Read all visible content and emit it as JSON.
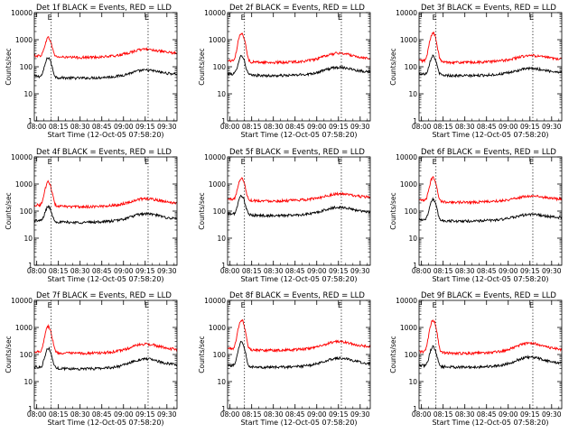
{
  "figure": {
    "xlabel": "Start Time (12-Oct-05 07:58:20)",
    "ylabel": "Counts/sec",
    "x_ticks": [
      "08:00",
      "08:15",
      "08:30",
      "08:45",
      "09:00",
      "09:15",
      "09:30"
    ],
    "y_ticks": [
      "1",
      "10",
      "100",
      "1000",
      "10000"
    ],
    "marker_label": "E"
  },
  "colors": {
    "events": "#000000",
    "lld": "#ff0000",
    "marker": "#000000"
  },
  "chart_data": [
    {
      "type": "line",
      "title": "Det 1f BLACK = Events, RED = LLD",
      "y_scale": "log",
      "ylim": [
        1,
        10000
      ],
      "xlim": [
        "07:58:20",
        "09:37:00"
      ],
      "series": [
        {
          "legend_word": "BLACK = Events",
          "color": "black",
          "baseline": 45,
          "peak_time": "08:08",
          "peak": 220,
          "late_bump_time": "09:15",
          "late_bump": 70,
          "end": 50
        },
        {
          "legend_word": "RED = LLD",
          "color": "red",
          "baseline": 260,
          "peak_time": "08:08",
          "peak": 1200,
          "late_bump_time": "09:15",
          "late_bump": 420,
          "end": 300
        }
      ],
      "marker_times": [
        "08:10",
        "09:17"
      ]
    },
    {
      "type": "line",
      "title": "Det 2f BLACK = Events, RED = LLD",
      "y_scale": "log",
      "ylim": [
        1,
        10000
      ],
      "xlim": [
        "07:58:20",
        "09:37:00"
      ],
      "series": [
        {
          "legend_word": "BLACK = Events",
          "color": "black",
          "baseline": 55,
          "peak_time": "08:08",
          "peak": 260,
          "late_bump_time": "09:15",
          "late_bump": 90,
          "end": 60
        },
        {
          "legend_word": "RED = LLD",
          "color": "red",
          "baseline": 170,
          "peak_time": "08:08",
          "peak": 1800,
          "late_bump_time": "09:15",
          "late_bump": 300,
          "end": 200
        }
      ],
      "marker_times": [
        "08:10",
        "09:17"
      ]
    },
    {
      "type": "line",
      "title": "Det 3f BLACK = Events, RED = LLD",
      "y_scale": "log",
      "ylim": [
        1,
        10000
      ],
      "xlim": [
        "07:58:20",
        "09:37:00"
      ],
      "series": [
        {
          "legend_word": "BLACK = Events",
          "color": "black",
          "baseline": 55,
          "peak_time": "08:08",
          "peak": 260,
          "late_bump_time": "09:15",
          "late_bump": 80,
          "end": 55
        },
        {
          "legend_word": "RED = LLD",
          "color": "red",
          "baseline": 170,
          "peak_time": "08:08",
          "peak": 1800,
          "late_bump_time": "09:15",
          "late_bump": 240,
          "end": 170
        }
      ],
      "marker_times": [
        "08:10",
        "09:17"
      ]
    },
    {
      "type": "line",
      "title": "Det 4f BLACK = Events, RED = LLD",
      "y_scale": "log",
      "ylim": [
        1,
        10000
      ],
      "xlim": [
        "07:58:20",
        "09:37:00"
      ],
      "series": [
        {
          "legend_word": "BLACK = Events",
          "color": "black",
          "baseline": 45,
          "peak_time": "08:08",
          "peak": 150,
          "late_bump_time": "09:15",
          "late_bump": 75,
          "end": 45
        },
        {
          "legend_word": "RED = LLD",
          "color": "red",
          "baseline": 170,
          "peak_time": "08:08",
          "peak": 1200,
          "late_bump_time": "09:15",
          "late_bump": 270,
          "end": 180
        }
      ],
      "marker_times": [
        "08:10",
        "09:17"
      ]
    },
    {
      "type": "line",
      "title": "Det 5f BLACK = Events, RED = LLD",
      "y_scale": "log",
      "ylim": [
        1,
        10000
      ],
      "xlim": [
        "07:58:20",
        "09:37:00"
      ],
      "series": [
        {
          "legend_word": "BLACK = Events",
          "color": "black",
          "baseline": 80,
          "peak_time": "08:08",
          "peak": 380,
          "late_bump_time": "09:15",
          "late_bump": 130,
          "end": 85
        },
        {
          "legend_word": "RED = LLD",
          "color": "red",
          "baseline": 280,
          "peak_time": "08:08",
          "peak": 1700,
          "late_bump_time": "09:15",
          "late_bump": 400,
          "end": 300
        }
      ],
      "marker_times": [
        "08:10",
        "09:17"
      ]
    },
    {
      "type": "line",
      "title": "Det 6f BLACK = Events, RED = LLD",
      "y_scale": "log",
      "ylim": [
        1,
        10000
      ],
      "xlim": [
        "07:58:20",
        "09:37:00"
      ],
      "series": [
        {
          "legend_word": "BLACK = Events",
          "color": "black",
          "baseline": 50,
          "peak_time": "08:08",
          "peak": 280,
          "late_bump_time": "09:15",
          "late_bump": 70,
          "end": 50
        },
        {
          "legend_word": "RED = LLD",
          "color": "red",
          "baseline": 250,
          "peak_time": "08:08",
          "peak": 1800,
          "late_bump_time": "09:15",
          "late_bump": 330,
          "end": 230
        }
      ],
      "marker_times": [
        "08:10",
        "09:17"
      ]
    },
    {
      "type": "line",
      "title": "Det 7f BLACK = Events, RED = LLD",
      "y_scale": "log",
      "ylim": [
        1,
        10000
      ],
      "xlim": [
        "07:58:20",
        "09:37:00"
      ],
      "series": [
        {
          "legend_word": "BLACK = Events",
          "color": "black",
          "baseline": 35,
          "peak_time": "08:08",
          "peak": 170,
          "late_bump_time": "09:15",
          "late_bump": 65,
          "end": 40
        },
        {
          "legend_word": "RED = LLD",
          "color": "red",
          "baseline": 130,
          "peak_time": "08:08",
          "peak": 1100,
          "late_bump_time": "09:15",
          "late_bump": 230,
          "end": 140
        }
      ],
      "marker_times": [
        "08:10",
        "09:17"
      ]
    },
    {
      "type": "line",
      "title": "Det 8f BLACK = Events, RED = LLD",
      "y_scale": "log",
      "ylim": [
        1,
        10000
      ],
      "xlim": [
        "07:58:20",
        "09:37:00"
      ],
      "series": [
        {
          "legend_word": "BLACK = Events",
          "color": "black",
          "baseline": 40,
          "peak_time": "08:08",
          "peak": 300,
          "late_bump_time": "09:15",
          "late_bump": 70,
          "end": 40
        },
        {
          "legend_word": "RED = LLD",
          "color": "red",
          "baseline": 170,
          "peak_time": "08:08",
          "peak": 1900,
          "late_bump_time": "09:15",
          "late_bump": 280,
          "end": 170
        }
      ],
      "marker_times": [
        "08:10",
        "09:17"
      ]
    },
    {
      "type": "line",
      "title": "Det 9f BLACK = Events, RED = LLD",
      "y_scale": "log",
      "ylim": [
        1,
        10000
      ],
      "xlim": [
        "07:58:20",
        "09:37:00"
      ],
      "series": [
        {
          "legend_word": "BLACK = Events",
          "color": "black",
          "baseline": 40,
          "peak_time": "08:08",
          "peak": 200,
          "late_bump_time": "09:15",
          "late_bump": 75,
          "end": 45
        },
        {
          "legend_word": "RED = LLD",
          "color": "red",
          "baseline": 130,
          "peak_time": "08:08",
          "peak": 1800,
          "late_bump_time": "09:15",
          "late_bump": 250,
          "end": 140
        }
      ],
      "marker_times": [
        "08:10",
        "09:17"
      ]
    }
  ]
}
